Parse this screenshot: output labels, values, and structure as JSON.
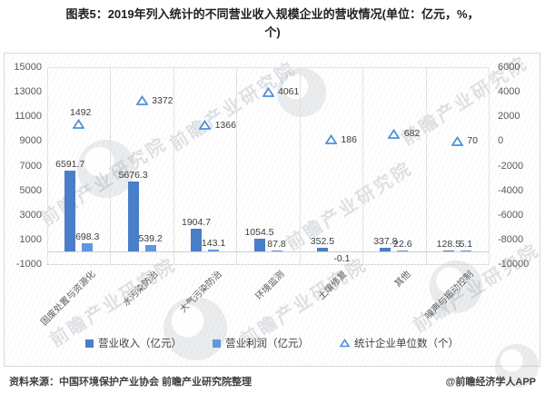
{
  "title_line1": "图表5：2019年列入统计的不同营业收入规模企业的营收情况(单位：亿元，%，",
  "title_line2": "个)",
  "watermark_text": "前瞻产业研究院",
  "footer": {
    "source": "资料来源：中国环境保护产业协会 前瞻产业研究院整理",
    "credit": "@前瞻经济学人APP"
  },
  "colors": {
    "revenue_bar": "#4a7ec8",
    "profit_bar": "#6197df",
    "triangle": "#4e90db",
    "axis_text": "#595959",
    "border": "#d9d9d9"
  },
  "chart_data": {
    "type": "bar",
    "title": "2019年列入统计的不同营业收入规模企业的营收情况",
    "categories": [
      "固废处置与资源化",
      "水污染防治",
      "大气污染防治",
      "环境监测",
      "土壤修复",
      "其他",
      "噪声与振动控制"
    ],
    "series": [
      {
        "name": "营业收入（亿元）",
        "type": "bar",
        "axis": "left",
        "values": [
          6591.7,
          5676.3,
          1904.7,
          1054.5,
          352.5,
          337.8,
          128.5
        ],
        "labels": [
          "6591.7",
          "5676.3",
          "1904.7",
          "1054.5",
          "352.5",
          "337.8",
          "128.5"
        ]
      },
      {
        "name": "营业利润（亿元）",
        "type": "bar",
        "axis": "left",
        "values": [
          698.3,
          539.2,
          143.1,
          87.8,
          -0.1,
          22.6,
          5.1
        ],
        "labels": [
          "698.3",
          "539.2",
          "143.1",
          "87.8",
          "-0.1",
          "22.6",
          "5.1"
        ]
      },
      {
        "name": "统计企业单位数（个）",
        "type": "scatter",
        "marker": "triangle-up-open",
        "axis": "right",
        "values": [
          1492,
          3372,
          1366,
          4061,
          186,
          682,
          70
        ],
        "labels": [
          "1492",
          "3372",
          "1366",
          "4061",
          "186",
          "682",
          "70"
        ]
      }
    ],
    "left_axis": {
      "min": -1000,
      "max": 15000,
      "ticks": [
        "15000",
        "13000",
        "11000",
        "9000",
        "7000",
        "5000",
        "3000",
        "1000",
        "-1000"
      ]
    },
    "right_axis": {
      "min": -10000,
      "max": 6000,
      "ticks": [
        "6000",
        "4000",
        "2000",
        "0",
        "-2000",
        "-4000",
        "-6000",
        "-8000",
        "-10000"
      ]
    },
    "legend_position": "bottom",
    "grid": "vertical-category-separators"
  }
}
